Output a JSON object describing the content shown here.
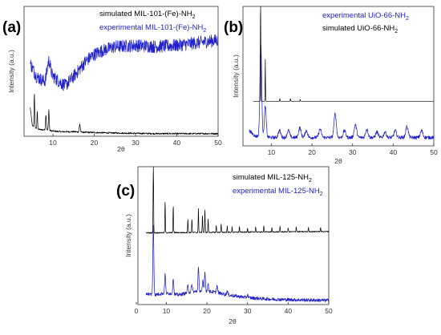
{
  "chart_data": [
    {
      "type": "line",
      "panel_label": "(a)",
      "xlabel": "2θ",
      "ylabel": "Intensity (a.u.)",
      "xlim": [
        3,
        50
      ],
      "xticks": [
        "10",
        "20",
        "30",
        "40",
        "50"
      ],
      "series": [
        {
          "name": "simulated MIL-101-(Fe)-NH",
          "name_sub": "2",
          "color": "#000000",
          "peaks": [
            [
              5.5,
              0.26,
              0.08
            ],
            [
              6.2,
              0.14,
              0.07
            ],
            [
              8.3,
              0.12,
              0.1
            ],
            [
              9.0,
              0.16,
              0.09
            ],
            [
              16.5,
              0.06,
              0.12
            ]
          ],
          "points": [
            [
              4.5,
              0.22
            ],
            [
              5.0,
              0.08
            ],
            [
              6.0,
              0.06
            ],
            [
              7.0,
              0.05
            ],
            [
              8.0,
              0.05
            ],
            [
              10.0,
              0.04
            ],
            [
              12.0,
              0.035
            ],
            [
              15.0,
              0.035
            ],
            [
              18.0,
              0.03
            ],
            [
              25.0,
              0.025
            ],
            [
              35.0,
              0.02
            ],
            [
              50.0,
              0.02
            ]
          ]
        },
        {
          "name": "experimental MIL-101-(Fe)-NH",
          "name_sub": "2",
          "color": "#2222cc",
          "peaks": [
            [
              9.0,
              0.14,
              0.4
            ]
          ],
          "points": [
            [
              4.5,
              0.56
            ],
            [
              6.0,
              0.46
            ],
            [
              8.0,
              0.42
            ],
            [
              10.0,
              0.46
            ],
            [
              12.0,
              0.41
            ],
            [
              13.0,
              0.39
            ],
            [
              15.0,
              0.46
            ],
            [
              18.0,
              0.58
            ],
            [
              20.0,
              0.63
            ],
            [
              22.0,
              0.66
            ],
            [
              25.0,
              0.69
            ],
            [
              30.0,
              0.7
            ],
            [
              35.0,
              0.69
            ],
            [
              40.0,
              0.7
            ],
            [
              45.0,
              0.72
            ],
            [
              50.0,
              0.74
            ]
          ]
        }
      ]
    },
    {
      "type": "line",
      "panel_label": "(b)",
      "xlabel": "2θ",
      "ylabel": "Intensity (a.u.)",
      "xlim": [
        3,
        50
      ],
      "xticks": [
        "10",
        "20",
        "30",
        "40",
        "50"
      ],
      "series": [
        {
          "name": "experimental UiO-66-NH",
          "name_sub": "2",
          "color": "#2222cc",
          "peaks": [
            [
              7.4,
              0.66,
              0.22
            ],
            [
              8.5,
              0.22,
              0.22
            ],
            [
              12.0,
              0.05,
              0.3
            ],
            [
              14.2,
              0.05,
              0.3
            ],
            [
              17.0,
              0.07,
              0.3
            ],
            [
              18.6,
              0.05,
              0.3
            ],
            [
              22.0,
              0.06,
              0.3
            ],
            [
              25.7,
              0.17,
              0.28
            ],
            [
              28.0,
              0.05,
              0.3
            ],
            [
              30.7,
              0.09,
              0.3
            ],
            [
              33.5,
              0.06,
              0.3
            ],
            [
              36.0,
              0.04,
              0.3
            ],
            [
              38.0,
              0.04,
              0.3
            ],
            [
              40.5,
              0.05,
              0.3
            ],
            [
              43.4,
              0.08,
              0.3
            ],
            [
              47.0,
              0.05,
              0.3
            ]
          ],
          "points": [
            [
              4.5,
              0.11
            ],
            [
              6.0,
              0.07
            ],
            [
              10.0,
              0.06
            ],
            [
              20.0,
              0.06
            ],
            [
              30.0,
              0.06
            ],
            [
              40.0,
              0.06
            ],
            [
              50.0,
              0.06
            ]
          ]
        },
        {
          "name": "simulated UiO-66-NH",
          "name_sub": "2",
          "color": "#000000",
          "peaks": [
            [
              7.35,
              0.98,
              0.05
            ],
            [
              8.5,
              0.3,
              0.05
            ],
            [
              12.1,
              0.02,
              0.05
            ],
            [
              14.7,
              0.02,
              0.05
            ],
            [
              17.1,
              0.015,
              0.05
            ]
          ],
          "points": [
            [
              5.5,
              0.32
            ],
            [
              50.0,
              0.32
            ]
          ]
        }
      ]
    },
    {
      "type": "line",
      "panel_label": "(c)",
      "xlabel": "2θ",
      "ylabel": "Intensity (a.u.)",
      "xlim": [
        3,
        50
      ],
      "xticks": [
        "0",
        "10",
        "20",
        "30",
        "40",
        "50"
      ],
      "series": [
        {
          "name": "simulated MIL-125-NH",
          "name_sub": "2",
          "color": "#000000",
          "peaks": [
            [
              6.8,
              0.58,
              0.06
            ],
            [
              9.7,
              0.23,
              0.06
            ],
            [
              11.7,
              0.2,
              0.06
            ],
            [
              15.3,
              0.1,
              0.06
            ],
            [
              16.3,
              0.1,
              0.06
            ],
            [
              17.9,
              0.17,
              0.06
            ],
            [
              18.9,
              0.13,
              0.06
            ],
            [
              19.5,
              0.17,
              0.06
            ],
            [
              20.3,
              0.1,
              0.06
            ],
            [
              22.3,
              0.05,
              0.06
            ],
            [
              23.5,
              0.06,
              0.06
            ],
            [
              25.0,
              0.05,
              0.06
            ],
            [
              26.2,
              0.04,
              0.06
            ],
            [
              28.0,
              0.04,
              0.06
            ],
            [
              30.0,
              0.03,
              0.06
            ],
            [
              32.0,
              0.04,
              0.06
            ],
            [
              34.0,
              0.05,
              0.06
            ],
            [
              36.0,
              0.03,
              0.06
            ],
            [
              38.0,
              0.04,
              0.06
            ],
            [
              40.0,
              0.03,
              0.06
            ],
            [
              42.0,
              0.04,
              0.06
            ],
            [
              45.0,
              0.03,
              0.06
            ],
            [
              48.0,
              0.03,
              0.06
            ]
          ],
          "points": [
            [
              5.0,
              0.52
            ],
            [
              50.0,
              0.53
            ]
          ]
        },
        {
          "name": "experimental MIL-125-NH",
          "name_sub": "2",
          "color": "#2222cc",
          "peaks": [
            [
              6.8,
              0.5,
              0.12
            ],
            [
              9.7,
              0.14,
              0.12
            ],
            [
              11.7,
              0.12,
              0.12
            ],
            [
              15.3,
              0.05,
              0.14
            ],
            [
              16.3,
              0.05,
              0.14
            ],
            [
              17.9,
              0.17,
              0.12
            ],
            [
              19.0,
              0.07,
              0.12
            ],
            [
              19.5,
              0.14,
              0.12
            ],
            [
              20.3,
              0.06,
              0.12
            ],
            [
              22.5,
              0.05,
              0.14
            ],
            [
              25.0,
              0.03,
              0.14
            ],
            [
              30.0,
              0.02,
              0.14
            ]
          ],
          "points": [
            [
              5.0,
              0.08
            ],
            [
              7.0,
              0.07
            ],
            [
              9.0,
              0.08
            ],
            [
              11.0,
              0.08
            ],
            [
              13.0,
              0.07
            ],
            [
              16.0,
              0.09
            ],
            [
              19.0,
              0.1
            ],
            [
              22.0,
              0.09
            ],
            [
              25.0,
              0.07
            ],
            [
              30.0,
              0.05
            ],
            [
              35.0,
              0.04
            ],
            [
              40.0,
              0.035
            ],
            [
              50.0,
              0.03
            ]
          ]
        }
      ]
    }
  ]
}
